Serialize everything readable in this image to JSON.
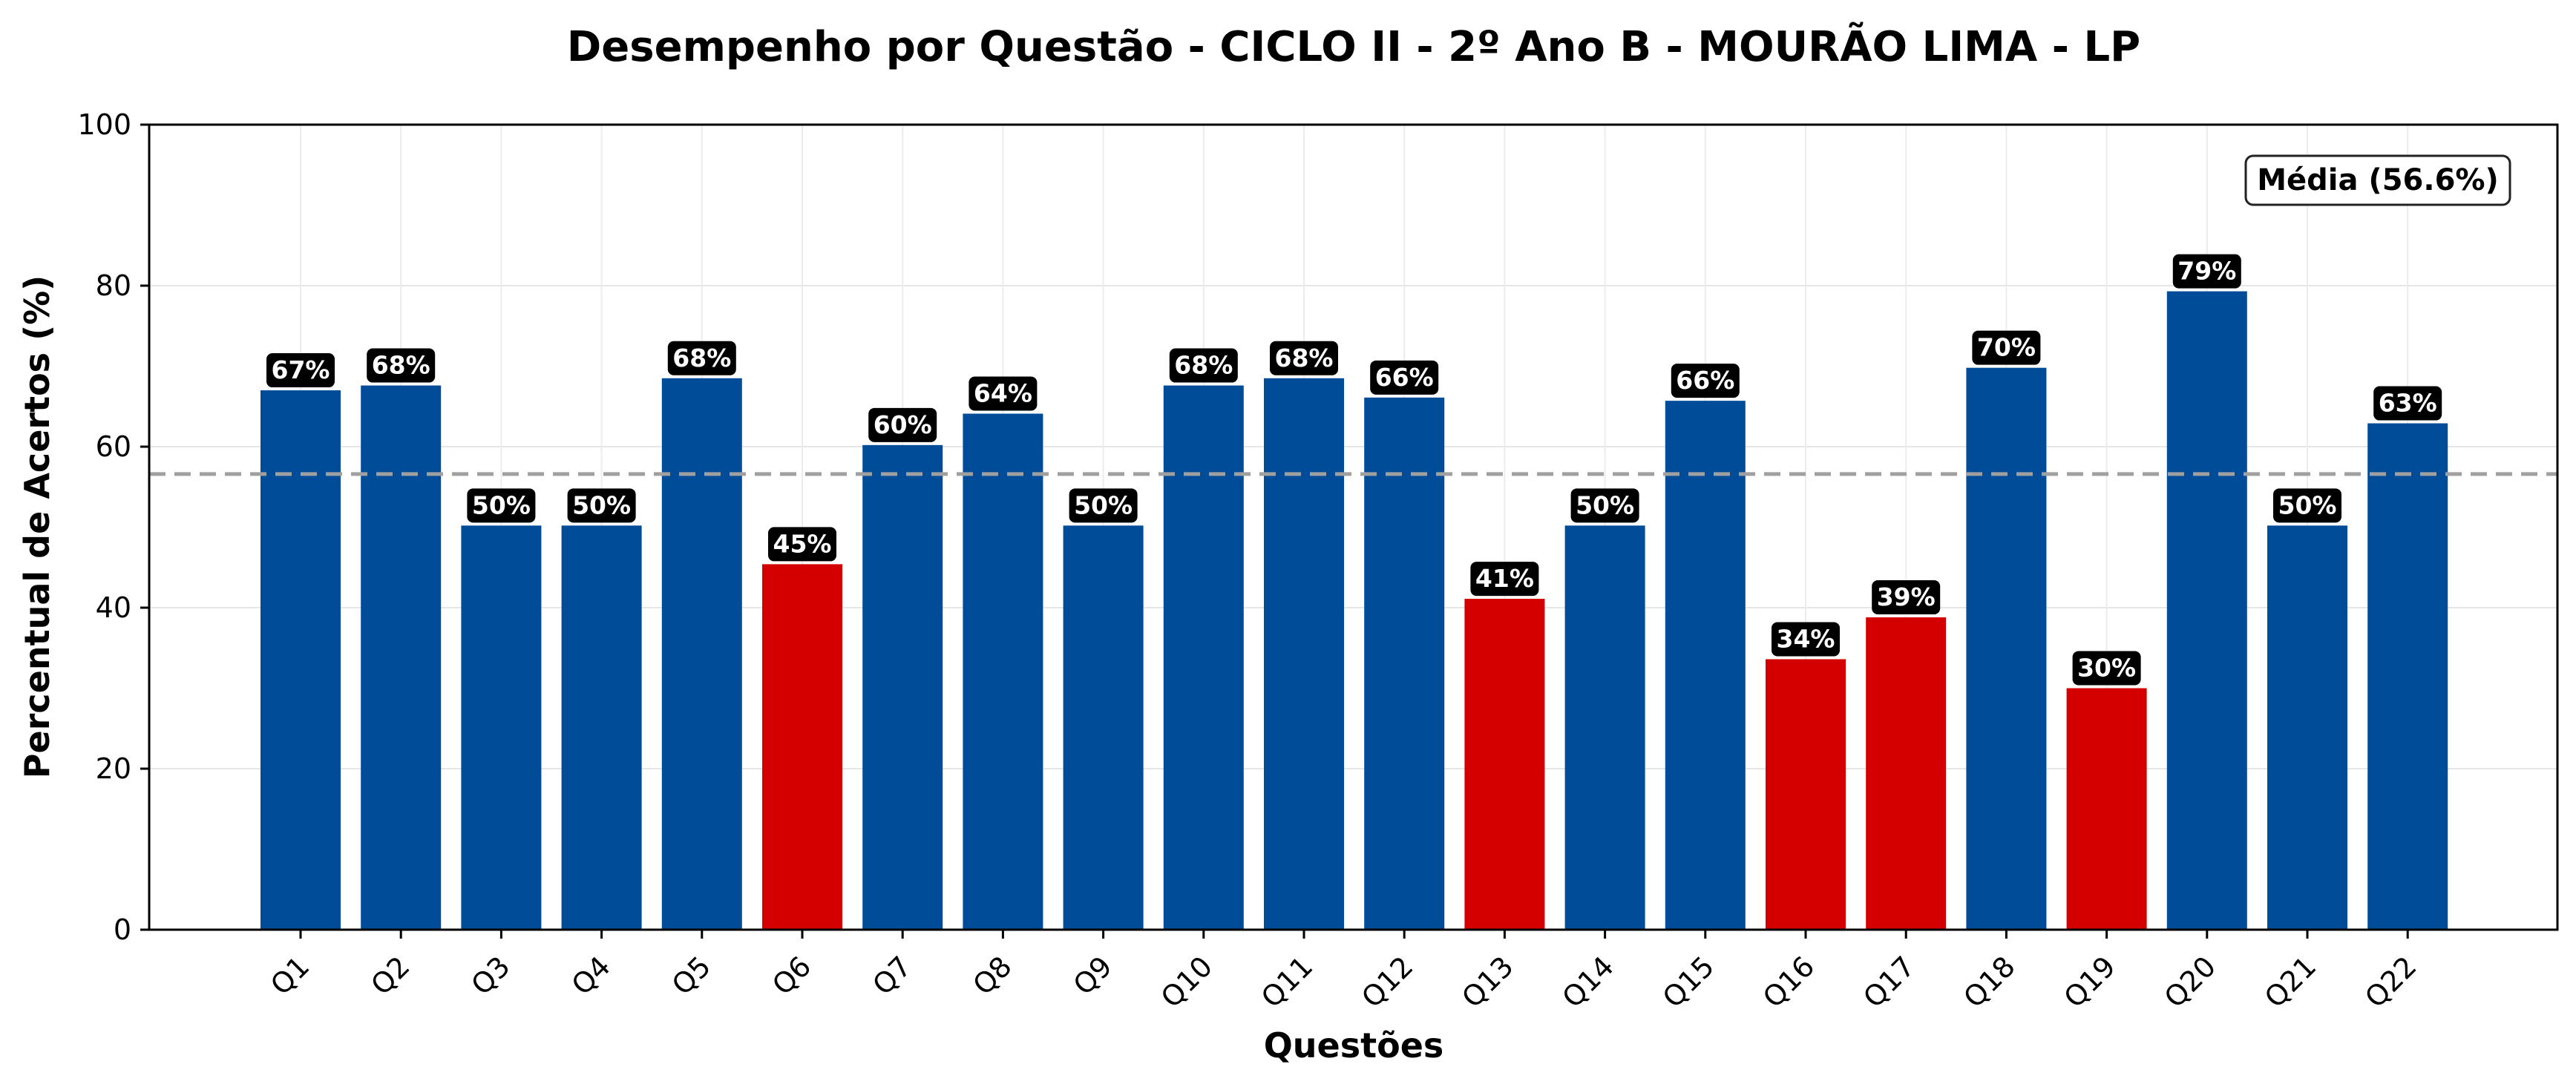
{
  "chart_data": {
    "type": "bar",
    "title": "Desempenho por Questão - CICLO II - 2º Ano B - MOURÃO LIMA - LP",
    "xlabel": "Questões",
    "ylabel": "Percentual de Acertos (%)",
    "ylim": [
      0,
      100
    ],
    "yticks": [
      0,
      20,
      40,
      60,
      80,
      100
    ],
    "grid": true,
    "categories": [
      "Q1",
      "Q2",
      "Q3",
      "Q4",
      "Q5",
      "Q6",
      "Q7",
      "Q8",
      "Q9",
      "Q10",
      "Q11",
      "Q12",
      "Q13",
      "Q14",
      "Q15",
      "Q16",
      "Q17",
      "Q18",
      "Q19",
      "Q20",
      "Q21",
      "Q22"
    ],
    "values": [
      67,
      68,
      50,
      50,
      68,
      45,
      60,
      64,
      50,
      68,
      68,
      66,
      41,
      50,
      66,
      34,
      39,
      70,
      30,
      79,
      50,
      63
    ],
    "data_labels": [
      "67%",
      "68%",
      "50%",
      "50%",
      "68%",
      "45%",
      "60%",
      "64%",
      "50%",
      "68%",
      "68%",
      "66%",
      "41%",
      "50%",
      "66%",
      "34%",
      "39%",
      "70%",
      "30%",
      "79%",
      "50%",
      "63%"
    ],
    "bar_values_precise": [
      67.0,
      67.6,
      50.2,
      50.2,
      68.5,
      45.4,
      60.2,
      64.1,
      50.2,
      67.6,
      68.5,
      66.1,
      41.1,
      50.2,
      65.7,
      33.6,
      38.8,
      69.8,
      30.0,
      79.3,
      50.2,
      62.9
    ],
    "mean_line": {
      "value": 56.6,
      "label": "Média (56.6%)"
    },
    "legend_position": "top-right",
    "colors": {
      "above_threshold": "#004c99",
      "below_threshold": "#d40000",
      "mean_line": "#a0a0a0",
      "label_box": "#000000"
    },
    "threshold": 50
  }
}
